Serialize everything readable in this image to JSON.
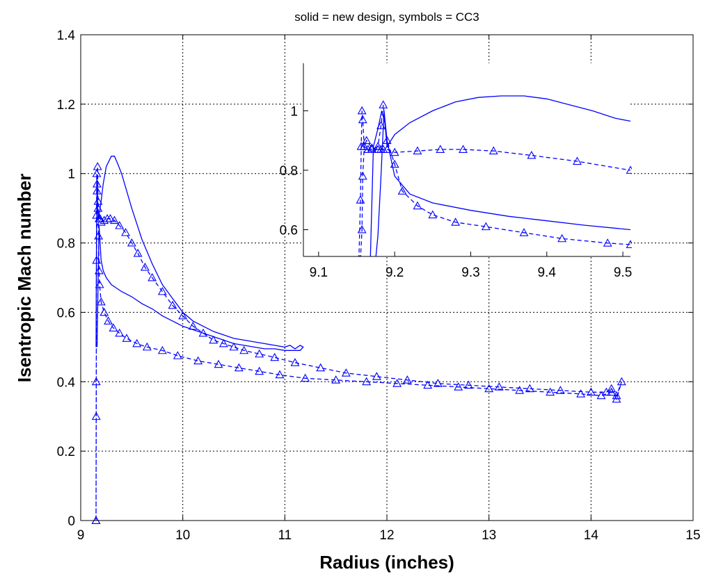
{
  "chart_data": [
    {
      "type": "line",
      "title": "solid = new design, symbols = CC3",
      "xlabel": "Radius (inches)",
      "ylabel": "Isentropic Mach number",
      "xlim": [
        9,
        15
      ],
      "ylim": [
        0,
        1.4
      ],
      "xticks": [
        "9",
        "10",
        "11",
        "12",
        "13",
        "14",
        "15"
      ],
      "yticks": [
        "0",
        "0.2",
        "0.4",
        "0.6",
        "0.8",
        "1",
        "1.2",
        "1.4"
      ],
      "grid": true,
      "line_color": "#0000ff",
      "series": [
        {
          "style": "solid",
          "x": [
            9.15,
            9.155,
            9.16,
            9.165,
            9.17,
            9.18,
            9.2,
            9.22,
            9.25,
            9.3,
            9.33,
            9.36,
            9.4,
            9.5,
            9.6,
            9.7,
            9.8,
            9.9,
            10.0,
            10.1,
            10.2,
            10.3,
            10.4,
            10.5,
            10.6,
            10.7,
            10.8,
            10.9,
            11.0,
            11.05,
            11.1,
            11.15,
            11.18,
            11.15,
            11.1,
            11.0,
            10.9,
            10.8,
            10.7,
            10.6,
            10.5,
            10.4,
            10.3,
            10.2,
            10.1,
            10.0,
            9.9,
            9.8,
            9.7,
            9.6,
            9.5,
            9.4,
            9.35,
            9.3,
            9.25,
            9.22,
            9.2,
            9.18,
            9.17,
            9.16
          ],
          "y": [
            0.5,
            0.82,
            0.98,
            0.9,
            0.87,
            0.88,
            0.92,
            0.97,
            1.02,
            1.05,
            1.05,
            1.03,
            1.0,
            0.9,
            0.81,
            0.74,
            0.68,
            0.64,
            0.6,
            0.575,
            0.56,
            0.545,
            0.535,
            0.525,
            0.52,
            0.515,
            0.51,
            0.505,
            0.5,
            0.505,
            0.495,
            0.505,
            0.5,
            0.49,
            0.49,
            0.49,
            0.495,
            0.495,
            0.5,
            0.505,
            0.51,
            0.52,
            0.53,
            0.54,
            0.55,
            0.56,
            0.575,
            0.59,
            0.61,
            0.625,
            0.645,
            0.66,
            0.67,
            0.68,
            0.7,
            0.72,
            0.75,
            0.85,
            0.68,
            0.5
          ]
        },
        {
          "style": "dashed-triangle",
          "x": [
            9.15,
            9.152,
            9.155,
            9.157,
            9.16,
            9.17,
            9.18,
            9.19,
            9.2,
            9.23,
            9.26,
            9.29,
            9.33,
            9.38,
            9.44,
            9.5,
            9.56,
            9.63,
            9.7,
            9.8,
            9.9,
            10.0,
            10.1,
            10.2,
            10.3,
            10.4,
            10.5,
            10.6,
            10.75,
            10.9,
            11.1,
            11.35,
            11.6,
            11.9,
            12.2,
            12.5,
            12.8,
            13.1,
            13.4,
            13.7,
            14.0,
            14.15,
            14.2,
            14.25,
            14.3,
            14.25,
            14.2,
            14.1,
            13.9,
            13.6,
            13.3,
            13.0,
            12.7,
            12.4,
            12.1,
            11.8,
            11.5,
            11.2,
            10.95,
            10.75,
            10.55,
            10.35,
            10.15,
            9.95,
            9.8,
            9.65,
            9.55,
            9.45,
            9.38,
            9.32,
            9.27,
            9.23,
            9.2,
            9.185,
            9.18,
            9.175,
            9.17,
            9.165,
            9.16,
            9.155,
            9.152,
            9.15
          ],
          "y": [
            0.0,
            0.4,
            0.88,
            1.0,
            0.97,
            0.9,
            0.87,
            0.87,
            0.86,
            0.865,
            0.87,
            0.87,
            0.865,
            0.85,
            0.83,
            0.8,
            0.77,
            0.73,
            0.7,
            0.66,
            0.62,
            0.59,
            0.56,
            0.54,
            0.52,
            0.51,
            0.5,
            0.49,
            0.48,
            0.47,
            0.455,
            0.44,
            0.425,
            0.415,
            0.405,
            0.395,
            0.39,
            0.385,
            0.38,
            0.375,
            0.37,
            0.37,
            0.38,
            0.35,
            0.4,
            0.36,
            0.37,
            0.36,
            0.365,
            0.37,
            0.375,
            0.38,
            0.385,
            0.39,
            0.395,
            0.4,
            0.405,
            0.41,
            0.42,
            0.43,
            0.44,
            0.45,
            0.46,
            0.475,
            0.49,
            0.5,
            0.51,
            0.525,
            0.54,
            0.555,
            0.575,
            0.6,
            0.63,
            0.68,
            0.72,
            0.82,
            0.92,
            1.02,
            0.95,
            0.75,
            0.3,
            0.0
          ]
        }
      ]
    },
    {
      "type": "line",
      "title": "",
      "xlabel": "",
      "ylabel": "",
      "xlim": [
        9.08,
        9.51
      ],
      "ylim": [
        0.51,
        1.16
      ],
      "xticks": [
        "9.1",
        "9.2",
        "9.3",
        "9.4",
        "9.5"
      ],
      "yticks": [
        "0.6",
        "0.8",
        "1"
      ],
      "grid": false,
      "line_color": "#0000ff",
      "series": [
        {
          "style": "solid",
          "x": [
            9.168,
            9.172,
            9.178,
            9.183,
            9.187,
            9.19,
            9.2,
            9.22,
            9.25,
            9.28,
            9.31,
            9.34,
            9.37,
            9.4,
            9.43,
            9.46,
            9.49,
            9.51
          ],
          "y": [
            0.5,
            0.88,
            0.94,
            1.0,
            0.96,
            0.88,
            0.92,
            0.96,
            1.0,
            1.03,
            1.045,
            1.05,
            1.05,
            1.04,
            1.02,
            1.0,
            0.975,
            0.965
          ]
        },
        {
          "style": "solid",
          "x": [
            9.175,
            9.178,
            9.182,
            9.186,
            9.19,
            9.2,
            9.22,
            9.25,
            9.3,
            9.35,
            9.4,
            9.45,
            9.51
          ],
          "y": [
            0.5,
            0.58,
            0.78,
            1.0,
            0.9,
            0.78,
            0.72,
            0.69,
            0.665,
            0.645,
            0.63,
            0.615,
            0.6
          ]
        },
        {
          "style": "dashed-triangle",
          "x": [
            9.153,
            9.155,
            9.156,
            9.157,
            9.158,
            9.16,
            9.163,
            9.17,
            9.178,
            9.182,
            9.185,
            9.19,
            9.2,
            9.23,
            9.26,
            9.29,
            9.33,
            9.38,
            9.44,
            9.51
          ],
          "y": [
            0.5,
            0.7,
            0.88,
            1.0,
            0.97,
            0.88,
            0.9,
            0.875,
            0.87,
            0.87,
            0.87,
            0.87,
            0.86,
            0.865,
            0.87,
            0.87,
            0.865,
            0.85,
            0.83,
            0.8
          ]
        },
        {
          "style": "dashed-triangle",
          "x": [
            9.155,
            9.157,
            9.158,
            9.16,
            9.165,
            9.17,
            9.178,
            9.182,
            9.185,
            9.19,
            9.2,
            9.21,
            9.23,
            9.25,
            9.28,
            9.32,
            9.37,
            9.42,
            9.48,
            9.51
          ],
          "y": [
            0.5,
            0.6,
            0.78,
            0.88,
            0.87,
            0.87,
            0.88,
            0.95,
            1.02,
            0.9,
            0.82,
            0.73,
            0.68,
            0.65,
            0.625,
            0.61,
            0.59,
            0.57,
            0.555,
            0.55
          ]
        }
      ]
    }
  ]
}
